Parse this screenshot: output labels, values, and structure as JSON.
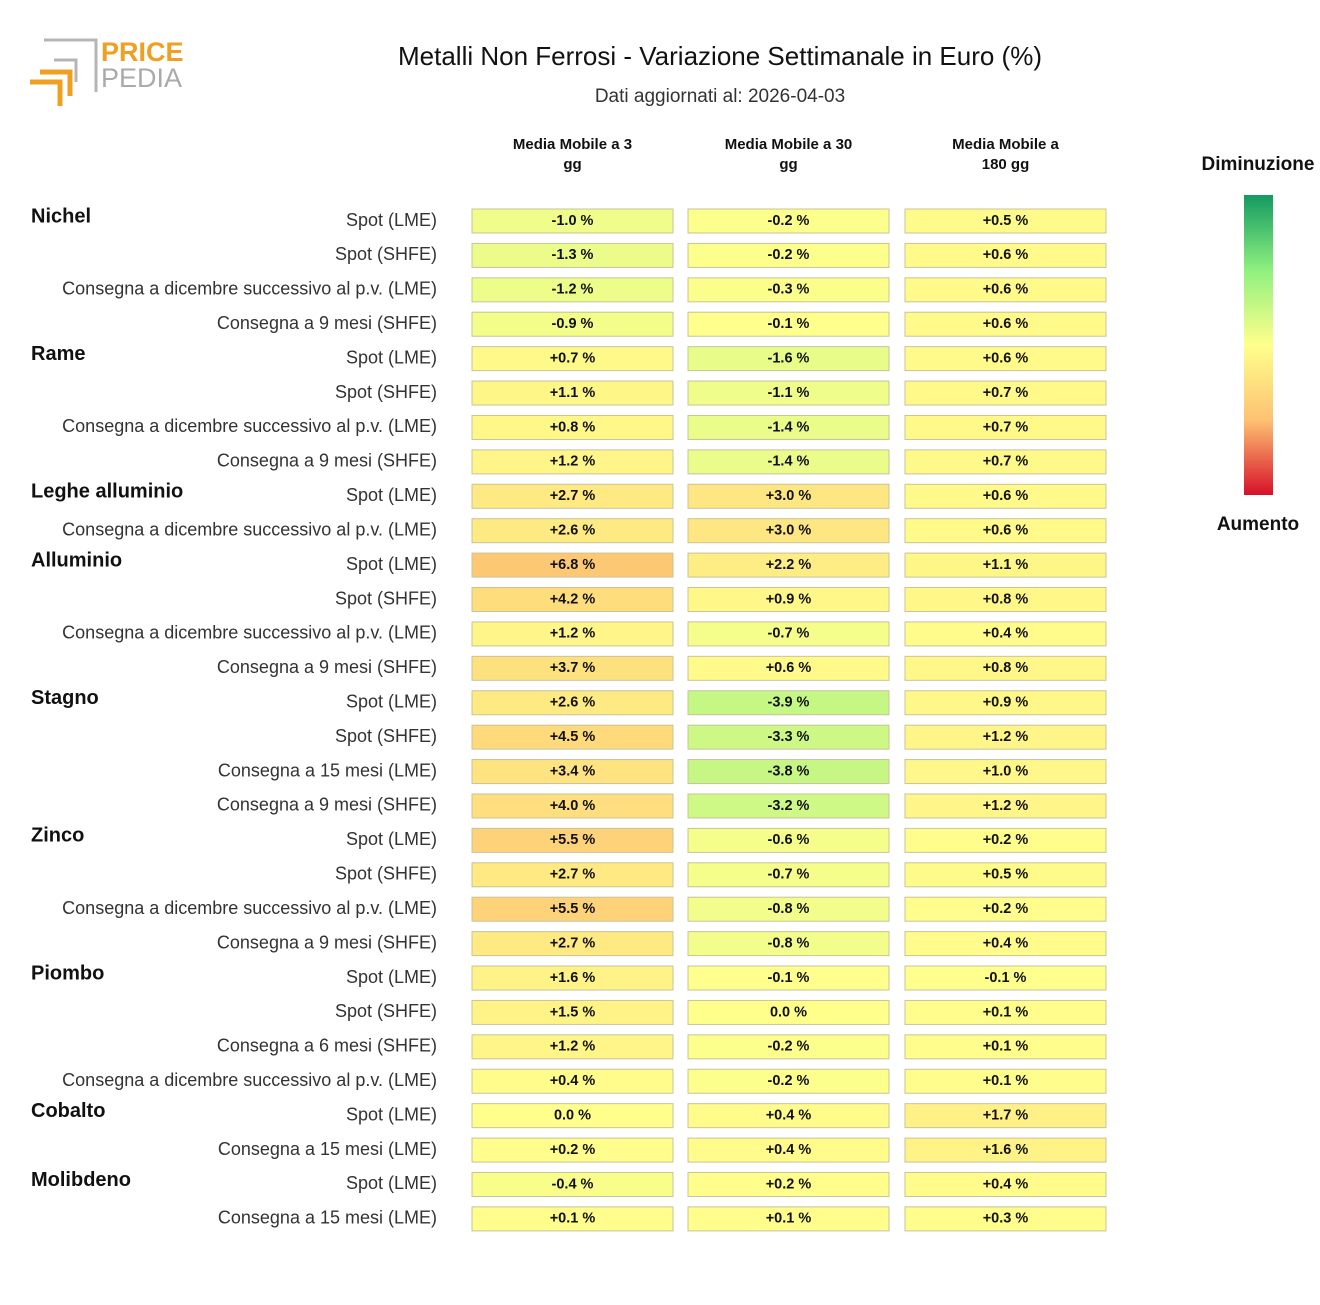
{
  "logo": [
    "PRICE",
    "PEDIA"
  ],
  "chart_data": {
    "type": "heatmap",
    "title": "Metalli Non Ferrosi - Variazione Settimanale in Euro (%)",
    "subtitle": "Dati aggiornati al: 2026-04-03",
    "columns": [
      "Media Mobile a 3 gg",
      "Media Mobile a 30 gg",
      "Media Mobile a 180 gg"
    ],
    "legend": {
      "top": "Diminuzione",
      "bottom": "Aumento",
      "colors": [
        "#139a61",
        "#8ff07f",
        "#ffff8c",
        "#fdc272",
        "#d7102a"
      ]
    },
    "groups": [
      {
        "name": "Nichel",
        "rows": [
          {
            "label": "Spot (LME)",
            "values": [
              -1.0,
              -0.2,
              0.5
            ],
            "value_labels": [
              "-1.0 %",
              "-0.2 %",
              "+0.5 %"
            ]
          },
          {
            "label": "Spot (SHFE)",
            "values": [
              -1.3,
              -0.2,
              0.6
            ],
            "value_labels": [
              "-1.3 %",
              "-0.2 %",
              "+0.6 %"
            ]
          },
          {
            "label": "Consegna a dicembre successivo al p.v. (LME)",
            "values": [
              -1.2,
              -0.3,
              0.6
            ],
            "value_labels": [
              "-1.2 %",
              "-0.3 %",
              "+0.6 %"
            ]
          },
          {
            "label": "Consegna a 9 mesi (SHFE)",
            "values": [
              -0.9,
              -0.1,
              0.6
            ],
            "value_labels": [
              "-0.9 %",
              "-0.1 %",
              "+0.6 %"
            ]
          }
        ]
      },
      {
        "name": "Rame",
        "rows": [
          {
            "label": "Spot (LME)",
            "values": [
              0.7,
              -1.6,
              0.6
            ],
            "value_labels": [
              "+0.7 %",
              "-1.6 %",
              "+0.6 %"
            ]
          },
          {
            "label": "Spot (SHFE)",
            "values": [
              1.1,
              -1.1,
              0.7
            ],
            "value_labels": [
              "+1.1 %",
              "-1.1 %",
              "+0.7 %"
            ]
          },
          {
            "label": "Consegna a dicembre successivo al p.v. (LME)",
            "values": [
              0.8,
              -1.4,
              0.7
            ],
            "value_labels": [
              "+0.8 %",
              "-1.4 %",
              "+0.7 %"
            ]
          },
          {
            "label": "Consegna a 9 mesi (SHFE)",
            "values": [
              1.2,
              -1.4,
              0.7
            ],
            "value_labels": [
              "+1.2 %",
              "-1.4 %",
              "+0.7 %"
            ]
          }
        ]
      },
      {
        "name": "Leghe alluminio",
        "rows": [
          {
            "label": "Spot (LME)",
            "values": [
              2.7,
              3.0,
              0.6
            ],
            "value_labels": [
              "+2.7 %",
              "+3.0 %",
              "+0.6 %"
            ]
          },
          {
            "label": "Consegna a dicembre successivo al p.v. (LME)",
            "values": [
              2.6,
              3.0,
              0.6
            ],
            "value_labels": [
              "+2.6 %",
              "+3.0 %",
              "+0.6 %"
            ]
          }
        ]
      },
      {
        "name": "Alluminio",
        "rows": [
          {
            "label": "Spot (LME)",
            "values": [
              6.8,
              2.2,
              1.1
            ],
            "value_labels": [
              "+6.8 %",
              "+2.2 %",
              "+1.1 %"
            ]
          },
          {
            "label": "Spot (SHFE)",
            "values": [
              4.2,
              0.9,
              0.8
            ],
            "value_labels": [
              "+4.2 %",
              "+0.9 %",
              "+0.8 %"
            ]
          },
          {
            "label": "Consegna a dicembre successivo al p.v. (LME)",
            "values": [
              1.2,
              -0.7,
              0.4
            ],
            "value_labels": [
              "+1.2 %",
              "-0.7 %",
              "+0.4 %"
            ]
          },
          {
            "label": "Consegna a 9 mesi (SHFE)",
            "values": [
              3.7,
              0.6,
              0.8
            ],
            "value_labels": [
              "+3.7 %",
              "+0.6 %",
              "+0.8 %"
            ]
          }
        ]
      },
      {
        "name": "Stagno",
        "rows": [
          {
            "label": "Spot (LME)",
            "values": [
              2.6,
              -3.9,
              0.9
            ],
            "value_labels": [
              "+2.6 %",
              "-3.9 %",
              "+0.9 %"
            ]
          },
          {
            "label": "Spot (SHFE)",
            "values": [
              4.5,
              -3.3,
              1.2
            ],
            "value_labels": [
              "+4.5 %",
              "-3.3 %",
              "+1.2 %"
            ]
          },
          {
            "label": "Consegna a 15 mesi (LME)",
            "values": [
              3.4,
              -3.8,
              1.0
            ],
            "value_labels": [
              "+3.4 %",
              "-3.8 %",
              "+1.0 %"
            ]
          },
          {
            "label": "Consegna a 9 mesi (SHFE)",
            "values": [
              4.0,
              -3.2,
              1.2
            ],
            "value_labels": [
              "+4.0 %",
              "-3.2 %",
              "+1.2 %"
            ]
          }
        ]
      },
      {
        "name": "Zinco",
        "rows": [
          {
            "label": "Spot (LME)",
            "values": [
              5.5,
              -0.6,
              0.2
            ],
            "value_labels": [
              "+5.5 %",
              "-0.6 %",
              "+0.2 %"
            ]
          },
          {
            "label": "Spot (SHFE)",
            "values": [
              2.7,
              -0.7,
              0.5
            ],
            "value_labels": [
              "+2.7 %",
              "-0.7 %",
              "+0.5 %"
            ]
          },
          {
            "label": "Consegna a dicembre successivo al p.v. (LME)",
            "values": [
              5.5,
              -0.8,
              0.2
            ],
            "value_labels": [
              "+5.5 %",
              "-0.8 %",
              "+0.2 %"
            ]
          },
          {
            "label": "Consegna a 9 mesi (SHFE)",
            "values": [
              2.7,
              -0.8,
              0.4
            ],
            "value_labels": [
              "+2.7 %",
              "-0.8 %",
              "+0.4 %"
            ]
          }
        ]
      },
      {
        "name": "Piombo",
        "rows": [
          {
            "label": "Spot (LME)",
            "values": [
              1.6,
              -0.1,
              -0.1
            ],
            "value_labels": [
              "+1.6 %",
              "-0.1 %",
              "-0.1 %"
            ]
          },
          {
            "label": "Spot (SHFE)",
            "values": [
              1.5,
              0.0,
              0.1
            ],
            "value_labels": [
              "+1.5 %",
              "0.0 %",
              "+0.1 %"
            ]
          },
          {
            "label": "Consegna a 6 mesi (SHFE)",
            "values": [
              1.2,
              -0.2,
              0.1
            ],
            "value_labels": [
              "+1.2 %",
              "-0.2 %",
              "+0.1 %"
            ]
          },
          {
            "label": "Consegna a dicembre successivo al p.v. (LME)",
            "values": [
              0.4,
              -0.2,
              0.1
            ],
            "value_labels": [
              "+0.4 %",
              "-0.2 %",
              "+0.1 %"
            ]
          }
        ]
      },
      {
        "name": "Cobalto",
        "rows": [
          {
            "label": "Spot (LME)",
            "values": [
              0.0,
              0.4,
              1.7
            ],
            "value_labels": [
              "0.0 %",
              "+0.4 %",
              "+1.7 %"
            ]
          },
          {
            "label": "Consegna a 15 mesi (LME)",
            "values": [
              0.2,
              0.4,
              1.6
            ],
            "value_labels": [
              "+0.2 %",
              "+0.4 %",
              "+1.6 %"
            ]
          }
        ]
      },
      {
        "name": "Molibdeno",
        "rows": [
          {
            "label": "Spot (LME)",
            "values": [
              -0.4,
              0.2,
              0.4
            ],
            "value_labels": [
              "-0.4 %",
              "+0.2 %",
              "+0.4 %"
            ]
          },
          {
            "label": "Consegna a 15 mesi (LME)",
            "values": [
              0.1,
              0.1,
              0.3
            ],
            "value_labels": [
              "+0.1 %",
              "+0.1 %",
              "+0.3 %"
            ]
          }
        ]
      }
    ]
  }
}
